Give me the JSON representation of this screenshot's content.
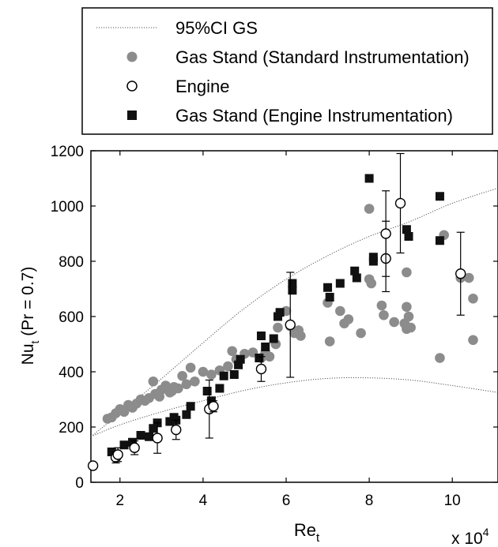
{
  "chart_data": {
    "type": "scatter",
    "xlabel_main": "Re",
    "xlabel_sub": "t",
    "ylabel_main": "Nu",
    "ylabel_sub": "t",
    "ylabel_suffix": " (Pr = 0.7)",
    "x_multiplier_base": "x 10",
    "x_multiplier_exp": "4",
    "xlim": [
      1.3,
      11.1
    ],
    "ylim": [
      0,
      1200
    ],
    "x_ticks": [
      2,
      4,
      6,
      8,
      10
    ],
    "x_tick_labels": [
      "2",
      "4",
      "6",
      "8",
      "10"
    ],
    "y_ticks": [
      0,
      200,
      400,
      600,
      800,
      1000,
      1200
    ],
    "y_tick_labels": [
      "0",
      "200",
      "400",
      "600",
      "800",
      "1000",
      "1200"
    ],
    "grid": false,
    "legend_position": "top, above plot",
    "legend": [
      {
        "key": "ci",
        "label": "95%CI GS"
      },
      {
        "key": "gs_std",
        "label": "Gas Stand (Standard Instrumentation)"
      },
      {
        "key": "engine",
        "label": "Engine"
      },
      {
        "key": "gs_eng",
        "label": "Gas Stand (Engine Instrumentation)"
      }
    ],
    "colors": {
      "gs_std": "#8c8c8c",
      "engine_fill": "#ffffff",
      "gs_eng": "#111111",
      "ci_line": "#555555"
    },
    "series": [
      {
        "key": "ci_upper",
        "x": [
          1.3,
          2.0,
          3.0,
          4.0,
          5.0,
          6.0,
          7.0,
          8.0,
          9.0,
          10.0,
          11.1
        ],
        "y": [
          165,
          250,
          375,
          505,
          630,
          735,
          820,
          890,
          945,
          1010,
          1065
        ]
      },
      {
        "key": "ci_lower",
        "x": [
          1.3,
          2.0,
          3.0,
          4.0,
          5.0,
          6.0,
          7.0,
          8.0,
          9.0,
          10.0,
          11.1
        ],
        "y": [
          165,
          208,
          255,
          295,
          333,
          360,
          376,
          378,
          370,
          350,
          325
        ]
      },
      {
        "key": "gs_std",
        "points": [
          [
            1.7,
            230
          ],
          [
            1.8,
            235
          ],
          [
            1.9,
            250
          ],
          [
            2.0,
            265
          ],
          [
            2.1,
            255
          ],
          [
            2.2,
            280
          ],
          [
            2.3,
            270
          ],
          [
            2.4,
            285
          ],
          [
            2.5,
            300
          ],
          [
            2.6,
            295
          ],
          [
            2.7,
            305
          ],
          [
            2.8,
            365
          ],
          [
            2.85,
            320
          ],
          [
            2.95,
            310
          ],
          [
            3.0,
            335
          ],
          [
            3.1,
            350
          ],
          [
            3.2,
            325
          ],
          [
            3.25,
            330
          ],
          [
            3.3,
            345
          ],
          [
            3.4,
            340
          ],
          [
            3.5,
            385
          ],
          [
            3.6,
            355
          ],
          [
            3.7,
            415
          ],
          [
            3.8,
            365
          ],
          [
            4.0,
            400
          ],
          [
            4.2,
            390
          ],
          [
            4.4,
            405
          ],
          [
            4.6,
            420
          ],
          [
            4.7,
            475
          ],
          [
            4.8,
            445
          ],
          [
            5.0,
            465
          ],
          [
            5.2,
            470
          ],
          [
            5.4,
            450
          ],
          [
            5.5,
            470
          ],
          [
            5.6,
            455
          ],
          [
            5.75,
            500
          ],
          [
            5.8,
            560
          ],
          [
            6.0,
            620
          ],
          [
            6.1,
            565
          ],
          [
            6.2,
            540
          ],
          [
            6.3,
            550
          ],
          [
            6.35,
            530
          ],
          [
            7.0,
            650
          ],
          [
            7.05,
            510
          ],
          [
            7.3,
            620
          ],
          [
            7.4,
            575
          ],
          [
            7.5,
            590
          ],
          [
            7.8,
            540
          ],
          [
            8.0,
            990
          ],
          [
            8.0,
            735
          ],
          [
            8.05,
            720
          ],
          [
            8.3,
            640
          ],
          [
            8.35,
            605
          ],
          [
            8.6,
            580
          ],
          [
            8.9,
            760
          ],
          [
            8.9,
            635
          ],
          [
            8.95,
            600
          ],
          [
            8.9,
            555
          ],
          [
            9.0,
            560
          ],
          [
            8.85,
            575
          ],
          [
            9.7,
            450
          ],
          [
            9.8,
            895
          ],
          [
            10.2,
            740
          ],
          [
            10.4,
            740
          ],
          [
            10.5,
            665
          ],
          [
            10.5,
            515
          ]
        ]
      },
      {
        "key": "engine",
        "points": [
          [
            1.35,
            60,
            0,
            0
          ],
          [
            1.9,
            90,
            20,
            20
          ],
          [
            1.95,
            100,
            25,
            25
          ],
          [
            2.35,
            125,
            25,
            25
          ],
          [
            2.9,
            160,
            55,
            55
          ],
          [
            3.35,
            190,
            35,
            35
          ],
          [
            4.15,
            265,
            105,
            105
          ],
          [
            4.25,
            275,
            20,
            20
          ],
          [
            5.4,
            410,
            45,
            45
          ],
          [
            6.1,
            570,
            190,
            190
          ],
          [
            8.4,
            810,
            135,
            120
          ],
          [
            8.4,
            900,
            155,
            155
          ],
          [
            8.75,
            1010,
            180,
            180
          ],
          [
            10.2,
            755,
            150,
            150
          ]
        ]
      },
      {
        "key": "gs_eng",
        "points": [
          [
            1.8,
            110
          ],
          [
            2.1,
            135
          ],
          [
            2.3,
            145
          ],
          [
            2.5,
            170
          ],
          [
            2.7,
            165
          ],
          [
            2.8,
            195
          ],
          [
            2.9,
            215
          ],
          [
            3.2,
            220
          ],
          [
            3.3,
            235
          ],
          [
            3.35,
            225
          ],
          [
            3.6,
            245
          ],
          [
            3.7,
            275
          ],
          [
            4.1,
            330
          ],
          [
            4.2,
            295
          ],
          [
            4.4,
            340
          ],
          [
            4.5,
            385
          ],
          [
            4.75,
            390
          ],
          [
            4.85,
            425
          ],
          [
            4.9,
            445
          ],
          [
            5.35,
            450
          ],
          [
            5.4,
            530
          ],
          [
            5.5,
            490
          ],
          [
            5.7,
            520
          ],
          [
            5.8,
            600
          ],
          [
            5.85,
            615
          ],
          [
            6.15,
            720
          ],
          [
            6.15,
            695
          ],
          [
            7.0,
            705
          ],
          [
            7.05,
            670
          ],
          [
            7.3,
            720
          ],
          [
            7.65,
            765
          ],
          [
            7.7,
            740
          ],
          [
            8.0,
            1100
          ],
          [
            8.1,
            800
          ],
          [
            8.1,
            815
          ],
          [
            8.9,
            915
          ],
          [
            8.95,
            890
          ],
          [
            9.7,
            1035
          ],
          [
            9.7,
            875
          ]
        ]
      }
    ]
  }
}
